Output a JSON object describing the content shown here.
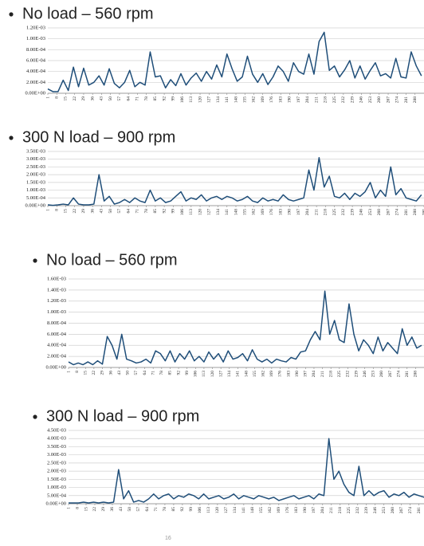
{
  "chart_data": [
    {
      "type": "line",
      "title": "No load – 560 rpm",
      "color": "#1f4e79",
      "grid": true,
      "x": [
        1,
        5,
        9,
        13,
        17,
        21,
        25,
        29,
        33,
        37,
        41,
        45,
        49,
        53,
        57,
        61,
        65,
        69,
        73,
        77,
        81,
        85,
        89,
        93,
        97,
        101,
        105,
        109,
        113,
        117,
        121,
        125,
        129,
        133,
        137,
        141,
        145,
        149,
        153,
        157,
        161,
        165,
        169,
        173,
        177,
        181,
        185,
        189,
        193,
        197,
        201,
        205,
        209,
        213,
        217,
        221,
        225,
        229,
        233,
        237,
        241,
        245,
        249,
        253,
        257,
        261,
        265,
        269,
        273,
        277,
        281,
        285,
        289,
        293
      ],
      "values": [
        8e-05,
        3e-05,
        3e-05,
        0.00024,
        5e-05,
        0.00048,
        0.00012,
        0.00046,
        0.00015,
        0.0002,
        0.00032,
        0.00015,
        0.00045,
        0.00018,
        0.0001,
        0.0002,
        0.00042,
        0.00012,
        0.0002,
        0.00015,
        0.00076,
        0.0003,
        0.00032,
        0.0001,
        0.00025,
        0.00014,
        0.00036,
        0.00015,
        0.00028,
        0.00037,
        0.00022,
        0.0004,
        0.00026,
        0.00052,
        0.0003,
        0.00072,
        0.00045,
        0.00022,
        0.0003,
        0.00068,
        0.00035,
        0.0002,
        0.00036,
        0.00016,
        0.0003,
        0.0005,
        0.0004,
        0.00022,
        0.00056,
        0.0004,
        0.00035,
        0.00072,
        0.00035,
        0.00095,
        0.00112,
        0.00042,
        0.0005,
        0.0003,
        0.00043,
        0.0006,
        0.00028,
        0.0005,
        0.00026,
        0.00042,
        0.00056,
        0.00032,
        0.00036,
        0.00028,
        0.00064,
        0.0003,
        0.00028,
        0.00076,
        0.0005,
        0.00032
      ],
      "xlim": [
        1,
        295
      ],
      "xticks": [
        1,
        8,
        15,
        22,
        29,
        36,
        43,
        50,
        57,
        64,
        71,
        78,
        85,
        92,
        99,
        106,
        113,
        120,
        127,
        134,
        141,
        148,
        155,
        162,
        169,
        176,
        183,
        190,
        197,
        204,
        211,
        218,
        225,
        232,
        239,
        246,
        253,
        260,
        267,
        274,
        281,
        288
      ],
      "ylim": [
        0,
        0.0012
      ],
      "yticks": [
        {
          "value": 0,
          "label": "0.00E+00"
        },
        {
          "value": 0.0002,
          "label": "2.00E-04"
        },
        {
          "value": 0.0004,
          "label": "4.00E-04"
        },
        {
          "value": 0.0006,
          "label": "6.00E-04"
        },
        {
          "value": 0.0008,
          "label": "8.00E-04"
        },
        {
          "value": 0.001,
          "label": "1.00E-03"
        },
        {
          "value": 0.0012,
          "label": "1.20E-03"
        }
      ]
    },
    {
      "type": "line",
      "title": "300 N load – 900 rpm",
      "color": "#1f4e79",
      "grid": true,
      "x": [
        1,
        5,
        9,
        13,
        17,
        21,
        25,
        29,
        33,
        37,
        41,
        45,
        49,
        53,
        57,
        61,
        65,
        69,
        73,
        77,
        81,
        85,
        89,
        93,
        97,
        101,
        105,
        109,
        113,
        117,
        121,
        125,
        129,
        133,
        137,
        141,
        145,
        149,
        153,
        157,
        161,
        165,
        169,
        173,
        177,
        181,
        185,
        189,
        193,
        197,
        201,
        205,
        209,
        213,
        217,
        221,
        225,
        229,
        233,
        237,
        241,
        245,
        249,
        253,
        257,
        261,
        265,
        269,
        273,
        277,
        281,
        285,
        289,
        293
      ],
      "values": [
        5e-05,
        2e-05,
        5e-05,
        0.0001,
        5e-05,
        0.0005,
        0.0001,
        5e-05,
        5e-05,
        0.0001,
        0.002,
        0.0003,
        0.0006,
        0.0001,
        0.0002,
        0.0004,
        0.0002,
        0.0005,
        0.0003,
        0.0002,
        0.001,
        0.0003,
        0.0005,
        0.0002,
        0.0003,
        0.0006,
        0.0009,
        0.0003,
        0.0005,
        0.0004,
        0.0007,
        0.0003,
        0.0005,
        0.0006,
        0.0004,
        0.0006,
        0.0005,
        0.0003,
        0.0004,
        0.0006,
        0.0003,
        0.0002,
        0.0005,
        0.0003,
        0.0004,
        0.0003,
        0.0007,
        0.0004,
        0.0003,
        0.0004,
        0.0005,
        0.0023,
        0.001,
        0.0031,
        0.0012,
        0.0019,
        0.0006,
        0.0005,
        0.0008,
        0.0004,
        0.0008,
        0.0006,
        0.0009,
        0.0015,
        0.0005,
        0.001,
        0.0006,
        0.0025,
        0.0007,
        0.0011,
        0.0005,
        0.0004,
        0.0003,
        0.0007
      ],
      "xlim": [
        1,
        295
      ],
      "xticks": [
        1,
        8,
        15,
        22,
        29,
        36,
        43,
        50,
        57,
        64,
        71,
        78,
        85,
        92,
        99,
        106,
        113,
        120,
        127,
        134,
        141,
        148,
        155,
        162,
        169,
        176,
        183,
        190,
        197,
        204,
        211,
        218,
        225,
        232,
        239,
        246,
        253,
        260,
        267,
        274,
        281,
        288,
        295
      ],
      "ylim": [
        0,
        0.0035
      ],
      "yticks": [
        {
          "value": 0,
          "label": "0.00E+00"
        },
        {
          "value": 0.0005,
          "label": "5.00E-04"
        },
        {
          "value": 0.001,
          "label": "1.00E-03"
        },
        {
          "value": 0.0015,
          "label": "1.50E-03"
        },
        {
          "value": 0.002,
          "label": "2.00E-03"
        },
        {
          "value": 0.0025,
          "label": "2.50E-03"
        },
        {
          "value": 0.003,
          "label": "3.00E-03"
        },
        {
          "value": 0.0035,
          "label": "3.50E-03"
        }
      ]
    },
    {
      "type": "line",
      "title": "No load – 560 rpm",
      "color": "#1f4e79",
      "grid": true,
      "x": [
        1,
        5,
        9,
        13,
        17,
        21,
        25,
        29,
        33,
        37,
        41,
        45,
        49,
        53,
        57,
        61,
        65,
        69,
        73,
        77,
        81,
        85,
        89,
        93,
        97,
        101,
        105,
        109,
        113,
        117,
        121,
        125,
        129,
        133,
        137,
        141,
        145,
        149,
        153,
        157,
        161,
        165,
        169,
        173,
        177,
        181,
        185,
        189,
        193,
        197,
        201,
        205,
        209,
        213,
        217,
        221,
        225,
        229,
        233,
        237,
        241,
        245,
        249,
        253,
        257,
        261,
        265,
        269,
        273,
        277,
        281,
        285,
        289,
        293
      ],
      "values": [
        0.0001,
        5e-05,
        8e-05,
        5e-05,
        0.0001,
        5e-05,
        0.00012,
        6e-05,
        0.00056,
        0.0004,
        0.00015,
        0.0006,
        0.00015,
        0.00012,
        8e-05,
        0.0001,
        0.00015,
        8e-05,
        0.0003,
        0.00025,
        0.00012,
        0.0003,
        0.0001,
        0.00025,
        0.00015,
        0.0003,
        0.00012,
        0.0002,
        0.0001,
        0.00028,
        0.00015,
        0.00025,
        0.0001,
        0.0003,
        0.00015,
        0.00018,
        0.00025,
        0.00012,
        0.00032,
        0.00015,
        0.0001,
        0.00015,
        8e-05,
        0.00015,
        0.00012,
        0.0001,
        0.00018,
        0.00015,
        0.00028,
        0.0003,
        0.0005,
        0.00065,
        0.0005,
        0.00138,
        0.0006,
        0.00085,
        0.0005,
        0.00045,
        0.00115,
        0.0006,
        0.0003,
        0.0005,
        0.0004,
        0.00025,
        0.00055,
        0.0003,
        0.00045,
        0.00035,
        0.00025,
        0.0007,
        0.0004,
        0.00055,
        0.00035,
        0.0004
      ],
      "xlim": [
        1,
        295
      ],
      "xticks": [
        1,
        8,
        15,
        22,
        29,
        36,
        43,
        50,
        57,
        64,
        71,
        78,
        85,
        92,
        99,
        106,
        113,
        120,
        127,
        134,
        141,
        148,
        155,
        162,
        169,
        176,
        183,
        190,
        197,
        204,
        211,
        218,
        225,
        232,
        239,
        246,
        253,
        260,
        267,
        274,
        281,
        288
      ],
      "ylim": [
        0,
        0.0016
      ],
      "yticks": [
        {
          "value": 0,
          "label": "0.00E+00"
        },
        {
          "value": 0.0002,
          "label": "2.00E-04"
        },
        {
          "value": 0.0004,
          "label": "4.00E-04"
        },
        {
          "value": 0.0006,
          "label": "6.00E-04"
        },
        {
          "value": 0.0008,
          "label": "8.00E-04"
        },
        {
          "value": 0.001,
          "label": "1.00E-03"
        },
        {
          "value": 0.0012,
          "label": "1.20E-03"
        },
        {
          "value": 0.0014,
          "label": "1.40E-03"
        },
        {
          "value": 0.0016,
          "label": "1.60E-03"
        }
      ]
    },
    {
      "type": "line",
      "title": "300 N load – 900 rpm",
      "color": "#1f4e79",
      "grid": true,
      "x": [
        1,
        5,
        9,
        13,
        17,
        21,
        25,
        29,
        33,
        37,
        41,
        45,
        49,
        53,
        57,
        61,
        65,
        69,
        73,
        77,
        81,
        85,
        89,
        93,
        97,
        101,
        105,
        109,
        113,
        117,
        121,
        125,
        129,
        133,
        137,
        141,
        145,
        149,
        153,
        157,
        161,
        165,
        169,
        173,
        177,
        181,
        185,
        189,
        193,
        197,
        201,
        205,
        209,
        213,
        217,
        221,
        225,
        229,
        233,
        237,
        241,
        245,
        249,
        253,
        257,
        261,
        265,
        269,
        273,
        277,
        281,
        285,
        289,
        293
      ],
      "values": [
        5e-05,
        5e-05,
        5e-05,
        0.0001,
        5e-05,
        0.0001,
        5e-05,
        0.0001,
        5e-05,
        0.0001,
        0.0021,
        0.0003,
        0.0008,
        0.0001,
        0.0002,
        0.0001,
        0.0003,
        0.0006,
        0.0003,
        0.0005,
        0.0006,
        0.0003,
        0.0005,
        0.0004,
        0.0006,
        0.0005,
        0.0003,
        0.0006,
        0.0003,
        0.0004,
        0.0005,
        0.0003,
        0.0004,
        0.0006,
        0.0003,
        0.0005,
        0.0004,
        0.0003,
        0.0005,
        0.0004,
        0.0003,
        0.0004,
        0.0002,
        0.0003,
        0.0004,
        0.0005,
        0.0003,
        0.0004,
        0.0005,
        0.0003,
        0.0006,
        0.0005,
        0.004,
        0.0015,
        0.002,
        0.0012,
        0.0007,
        0.0005,
        0.0023,
        0.0005,
        0.0008,
        0.0005,
        0.0007,
        0.0008,
        0.0004,
        0.0006,
        0.0005,
        0.0007,
        0.0004,
        0.0006,
        0.0005,
        0.0004,
        0.0003,
        0.0005
      ],
      "xlim": [
        1,
        285
      ],
      "xticks": [
        1,
        8,
        15,
        22,
        29,
        36,
        43,
        50,
        57,
        64,
        71,
        78,
        85,
        92,
        99,
        106,
        113,
        120,
        127,
        134,
        141,
        148,
        155,
        162,
        169,
        176,
        183,
        190,
        197,
        204,
        211,
        218,
        225,
        232,
        239,
        246,
        253,
        260,
        267,
        274,
        281
      ],
      "ylim": [
        0,
        0.0045
      ],
      "yticks": [
        {
          "value": 0,
          "label": "0.00E+00"
        },
        {
          "value": 0.0005,
          "label": "5.00E-04"
        },
        {
          "value": 0.001,
          "label": "1.00E-03"
        },
        {
          "value": 0.0015,
          "label": "1.50E-03"
        },
        {
          "value": 0.002,
          "label": "2.00E-03"
        },
        {
          "value": 0.0025,
          "label": "2.50E-03"
        },
        {
          "value": 0.003,
          "label": "3.00E-03"
        },
        {
          "value": 0.0035,
          "label": "3.50E-03"
        },
        {
          "value": 0.004,
          "label": "4.00E-03"
        },
        {
          "value": 0.0045,
          "label": "4.50E-03"
        }
      ]
    }
  ],
  "footer": "16"
}
